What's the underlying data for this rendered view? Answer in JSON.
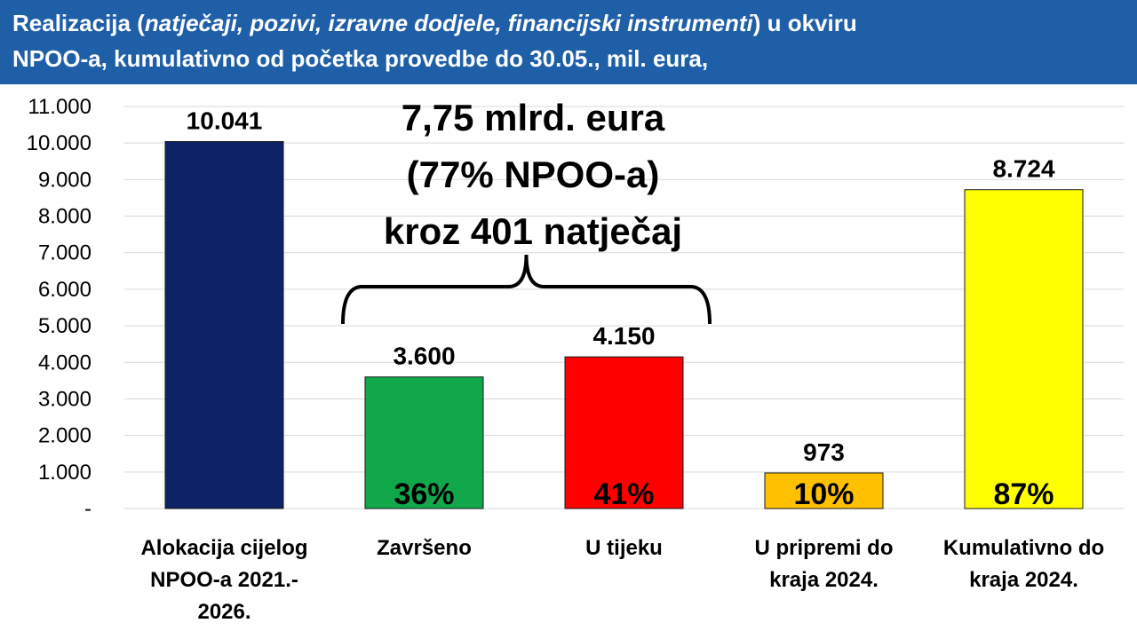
{
  "title": {
    "part1": "Realizacija (",
    "part2_italic": "natječaji, pozivi, izravne dodjele, financijski instrumenti",
    "part3": ") u okviru",
    "line2": "NPOO-a, kumulativno od početka provedbe do 30.05., mil. eura,"
  },
  "colors": {
    "title_bg": "#1f5fa8",
    "bars": [
      "#0d2366",
      "#10a84b",
      "#fe0000",
      "#ffc000",
      "#ffff00"
    ]
  },
  "chart_data": {
    "type": "bar",
    "categories": [
      [
        "Alokacija cijelog",
        "NPOO-a 2021.-",
        "2026."
      ],
      [
        "Završeno"
      ],
      [
        "U tijeku"
      ],
      [
        "U pripremi do",
        "kraja 2024."
      ],
      [
        "Kumulativno do",
        "kraja 2024."
      ]
    ],
    "values": [
      10041,
      3600,
      4150,
      973,
      8724
    ],
    "value_labels": [
      "10.041",
      "3.600",
      "4.150",
      "973",
      "8.724"
    ],
    "percent_labels": [
      "",
      "36%",
      "41%",
      "10%",
      "87%"
    ],
    "ylim": [
      0,
      11000
    ],
    "yticks": [
      0,
      1000,
      2000,
      3000,
      4000,
      5000,
      6000,
      7000,
      8000,
      9000,
      10000,
      11000
    ],
    "ytick_labels": [
      "-",
      "1.000",
      "2.000",
      "3.000",
      "4.000",
      "5.000",
      "6.000",
      "7.000",
      "8.000",
      "9.000",
      "10.000",
      "11.000"
    ],
    "grid": true,
    "annotation": {
      "lines": [
        "7,75 mlrd. eura",
        "(77% NPOO-a)",
        "kroz 401 natječaj"
      ],
      "spans_categories": [
        1,
        2
      ]
    }
  }
}
